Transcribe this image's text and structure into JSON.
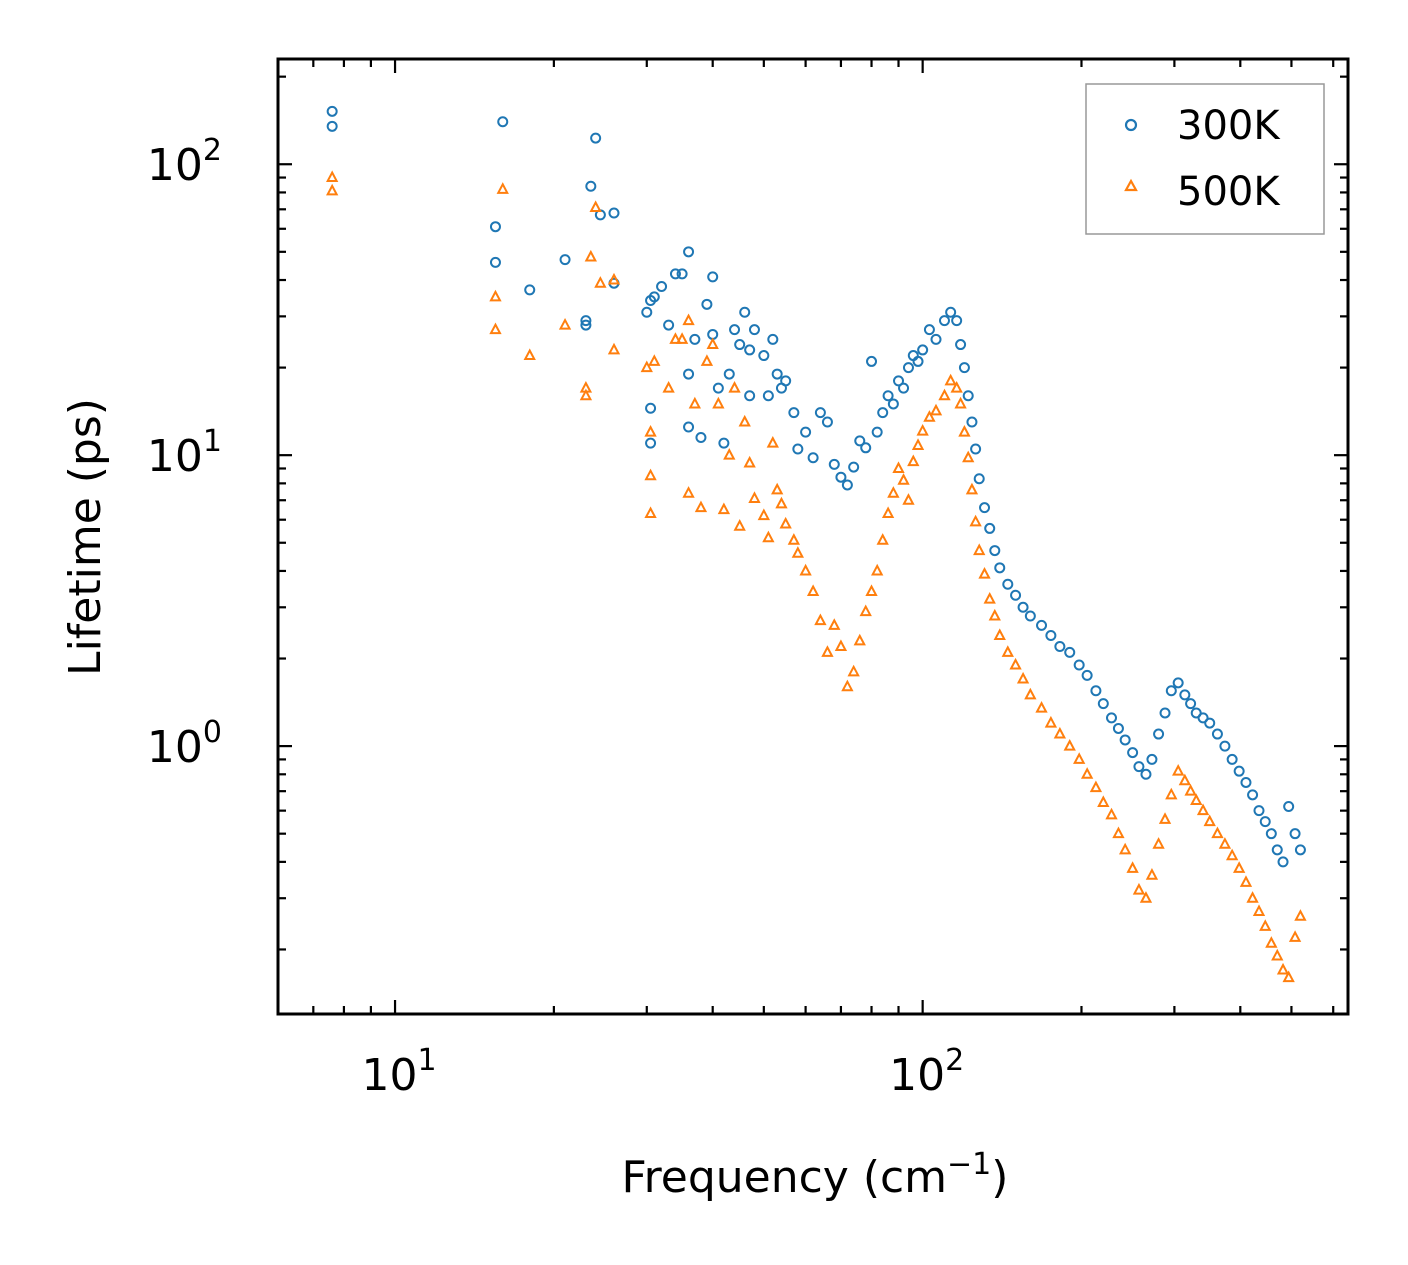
{
  "chart_data": {
    "type": "scatter",
    "title": "",
    "xlabel": "Frequency (cm",
    "xlabel_sup": "−1",
    "xlabel_close": ")",
    "ylabel": "Lifetime (ps)",
    "xscale": "log",
    "yscale": "log",
    "xlim": [
      6.0,
      640
    ],
    "ylim": [
      0.12,
      230
    ],
    "x_ticks": [
      {
        "value": 10,
        "base": "10",
        "exp": "1"
      },
      {
        "value": 100,
        "base": "10",
        "exp": "2"
      }
    ],
    "y_ticks": [
      {
        "value": 1,
        "base": "10",
        "exp": "0"
      },
      {
        "value": 10,
        "base": "10",
        "exp": "1"
      },
      {
        "value": 100,
        "base": "10",
        "exp": "2"
      }
    ],
    "legend_position": "top-right",
    "colors": {
      "300K": "#1f77b4",
      "500K": "#ff7f0e"
    },
    "series": [
      {
        "name": "300K",
        "marker": "circle",
        "points": [
          [
            7.6,
            152
          ],
          [
            7.6,
            135
          ],
          [
            15.5,
            61
          ],
          [
            15.5,
            46
          ],
          [
            16,
            140
          ],
          [
            18,
            37
          ],
          [
            21,
            47
          ],
          [
            23,
            29
          ],
          [
            23,
            28
          ],
          [
            23.5,
            84
          ],
          [
            24,
            123
          ],
          [
            24.5,
            67
          ],
          [
            26,
            68
          ],
          [
            26,
            39
          ],
          [
            30,
            31
          ],
          [
            30.5,
            34
          ],
          [
            31,
            35
          ],
          [
            30.5,
            14.5
          ],
          [
            30.5,
            11
          ],
          [
            32,
            38
          ],
          [
            33,
            28
          ],
          [
            34,
            42
          ],
          [
            35,
            42
          ],
          [
            36,
            50
          ],
          [
            36,
            19
          ],
          [
            36,
            12.5
          ],
          [
            37,
            25
          ],
          [
            38,
            11.5
          ],
          [
            39,
            33
          ],
          [
            40,
            41
          ],
          [
            40,
            26
          ],
          [
            41,
            17
          ],
          [
            42,
            11
          ],
          [
            43,
            19
          ],
          [
            44,
            27
          ],
          [
            45,
            24
          ],
          [
            46,
            31
          ],
          [
            47,
            16
          ],
          [
            47,
            23
          ],
          [
            48,
            27
          ],
          [
            50,
            22
          ],
          [
            51,
            16
          ],
          [
            52,
            25
          ],
          [
            53,
            19
          ],
          [
            54,
            17
          ],
          [
            55,
            18
          ],
          [
            57,
            14
          ],
          [
            58,
            10.5
          ],
          [
            60,
            12
          ],
          [
            62,
            9.8
          ],
          [
            64,
            14
          ],
          [
            66,
            13
          ],
          [
            68,
            9.3
          ],
          [
            70,
            8.4
          ],
          [
            72,
            7.9
          ],
          [
            74,
            9.1
          ],
          [
            76,
            11.2
          ],
          [
            78,
            10.6
          ],
          [
            80,
            21
          ],
          [
            82,
            12
          ],
          [
            84,
            14
          ],
          [
            86,
            16
          ],
          [
            88,
            15
          ],
          [
            90,
            18
          ],
          [
            92,
            17
          ],
          [
            94,
            20
          ],
          [
            96,
            22
          ],
          [
            98,
            21
          ],
          [
            100,
            23
          ],
          [
            103,
            27
          ],
          [
            106,
            25
          ],
          [
            110,
            29
          ],
          [
            113,
            31
          ],
          [
            116,
            29
          ],
          [
            118,
            24
          ],
          [
            120,
            20
          ],
          [
            122,
            16
          ],
          [
            124,
            13
          ],
          [
            126,
            10.5
          ],
          [
            128,
            8.3
          ],
          [
            131,
            6.6
          ],
          [
            134,
            5.6
          ],
          [
            137,
            4.7
          ],
          [
            140,
            4.1
          ],
          [
            145,
            3.6
          ],
          [
            150,
            3.3
          ],
          [
            155,
            3.0
          ],
          [
            160,
            2.8
          ],
          [
            168,
            2.6
          ],
          [
            175,
            2.4
          ],
          [
            182,
            2.2
          ],
          [
            190,
            2.1
          ],
          [
            198,
            1.9
          ],
          [
            205,
            1.75
          ],
          [
            213,
            1.55
          ],
          [
            220,
            1.4
          ],
          [
            228,
            1.25
          ],
          [
            235,
            1.15
          ],
          [
            242,
            1.05
          ],
          [
            250,
            0.95
          ],
          [
            257,
            0.85
          ],
          [
            265,
            0.8
          ],
          [
            272,
            0.9
          ],
          [
            280,
            1.1
          ],
          [
            288,
            1.3
          ],
          [
            296,
            1.55
          ],
          [
            305,
            1.65
          ],
          [
            314,
            1.5
          ],
          [
            322,
            1.4
          ],
          [
            330,
            1.3
          ],
          [
            340,
            1.25
          ],
          [
            350,
            1.2
          ],
          [
            362,
            1.1
          ],
          [
            374,
            1.0
          ],
          [
            386,
            0.9
          ],
          [
            398,
            0.82
          ],
          [
            410,
            0.75
          ],
          [
            422,
            0.68
          ],
          [
            434,
            0.6
          ],
          [
            446,
            0.55
          ],
          [
            458,
            0.5
          ],
          [
            470,
            0.44
          ],
          [
            482,
            0.4
          ],
          [
            494,
            0.62
          ],
          [
            508,
            0.5
          ],
          [
            520,
            0.44
          ]
        ]
      },
      {
        "name": "500K",
        "marker": "triangle",
        "points": [
          [
            7.6,
            90
          ],
          [
            7.6,
            81
          ],
          [
            15.5,
            35
          ],
          [
            15.5,
            27
          ],
          [
            16,
            82
          ],
          [
            18,
            22
          ],
          [
            21,
            28
          ],
          [
            23,
            17
          ],
          [
            23,
            16
          ],
          [
            23.5,
            48
          ],
          [
            24,
            71
          ],
          [
            24.5,
            39
          ],
          [
            26,
            40
          ],
          [
            26,
            23
          ],
          [
            30,
            20
          ],
          [
            30.5,
            12
          ],
          [
            30.5,
            8.5
          ],
          [
            30.5,
            6.3
          ],
          [
            31,
            21
          ],
          [
            33,
            17
          ],
          [
            34,
            25
          ],
          [
            35,
            25
          ],
          [
            36,
            29
          ],
          [
            36,
            7.4
          ],
          [
            37,
            15
          ],
          [
            38,
            6.6
          ],
          [
            39,
            21
          ],
          [
            40,
            24
          ],
          [
            41,
            15
          ],
          [
            42,
            6.5
          ],
          [
            43,
            10
          ],
          [
            44,
            17
          ],
          [
            45,
            5.7
          ],
          [
            46,
            13
          ],
          [
            47,
            9.4
          ],
          [
            48,
            7.1
          ],
          [
            50,
            6.2
          ],
          [
            51,
            5.2
          ],
          [
            52,
            11
          ],
          [
            53,
            7.6
          ],
          [
            54,
            6.8
          ],
          [
            55,
            5.8
          ],
          [
            57,
            5.1
          ],
          [
            58,
            4.6
          ],
          [
            60,
            4.0
          ],
          [
            62,
            3.4
          ],
          [
            64,
            2.7
          ],
          [
            66,
            2.1
          ],
          [
            68,
            2.6
          ],
          [
            70,
            2.2
          ],
          [
            72,
            1.6
          ],
          [
            74,
            1.8
          ],
          [
            76,
            2.3
          ],
          [
            78,
            2.9
          ],
          [
            80,
            3.4
          ],
          [
            82,
            4.0
          ],
          [
            84,
            5.1
          ],
          [
            86,
            6.3
          ],
          [
            88,
            7.4
          ],
          [
            90,
            9.0
          ],
          [
            92,
            8.2
          ],
          [
            94,
            7.0
          ],
          [
            96,
            9.5
          ],
          [
            98,
            10.8
          ],
          [
            100,
            12.1
          ],
          [
            103,
            13.5
          ],
          [
            106,
            14.2
          ],
          [
            110,
            16
          ],
          [
            113,
            18
          ],
          [
            116,
            17
          ],
          [
            118,
            15
          ],
          [
            120,
            12
          ],
          [
            122,
            9.8
          ],
          [
            124,
            7.6
          ],
          [
            126,
            5.9
          ],
          [
            128,
            4.7
          ],
          [
            131,
            3.9
          ],
          [
            134,
            3.2
          ],
          [
            137,
            2.8
          ],
          [
            140,
            2.4
          ],
          [
            145,
            2.1
          ],
          [
            150,
            1.9
          ],
          [
            155,
            1.7
          ],
          [
            160,
            1.5
          ],
          [
            168,
            1.35
          ],
          [
            175,
            1.2
          ],
          [
            182,
            1.1
          ],
          [
            190,
            1.0
          ],
          [
            198,
            0.9
          ],
          [
            205,
            0.8
          ],
          [
            213,
            0.72
          ],
          [
            220,
            0.64
          ],
          [
            228,
            0.58
          ],
          [
            235,
            0.5
          ],
          [
            242,
            0.44
          ],
          [
            250,
            0.38
          ],
          [
            257,
            0.32
          ],
          [
            265,
            0.3
          ],
          [
            272,
            0.36
          ],
          [
            280,
            0.46
          ],
          [
            288,
            0.56
          ],
          [
            296,
            0.68
          ],
          [
            305,
            0.82
          ],
          [
            314,
            0.76
          ],
          [
            322,
            0.7
          ],
          [
            330,
            0.65
          ],
          [
            340,
            0.6
          ],
          [
            350,
            0.55
          ],
          [
            362,
            0.5
          ],
          [
            374,
            0.46
          ],
          [
            386,
            0.42
          ],
          [
            398,
            0.38
          ],
          [
            410,
            0.34
          ],
          [
            422,
            0.3
          ],
          [
            434,
            0.27
          ],
          [
            446,
            0.24
          ],
          [
            458,
            0.21
          ],
          [
            470,
            0.19
          ],
          [
            482,
            0.17
          ],
          [
            494,
            0.16
          ],
          [
            508,
            0.22
          ],
          [
            520,
            0.26
          ]
        ]
      }
    ]
  }
}
